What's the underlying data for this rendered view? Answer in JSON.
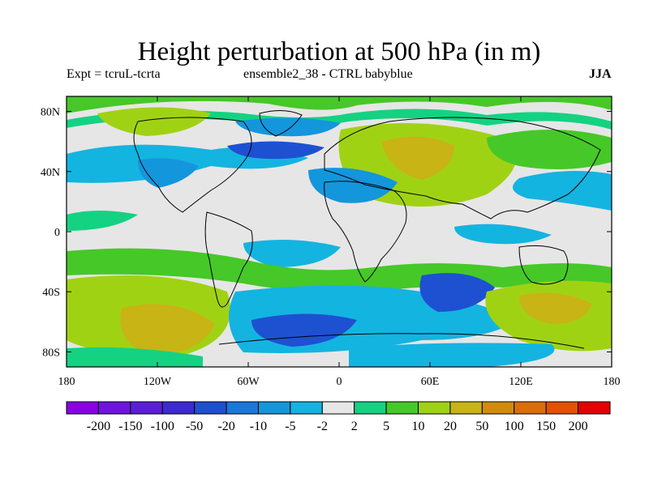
{
  "title": "Height perturbation at 500 hPa (in m)",
  "subtitle_left": "Expt = tcruL-tcrta",
  "subtitle_center": "ensemble2_38 - CTRL babyblue",
  "subtitle_right": "JJA",
  "chart_data": {
    "type": "heatmap",
    "projection": "cylindrical-equidistant",
    "xlim": [
      -180,
      180
    ],
    "ylim": [
      -90,
      90
    ],
    "x_ticks": [
      {
        "value": -180,
        "label": "180"
      },
      {
        "value": -120,
        "label": "120W"
      },
      {
        "value": -60,
        "label": "60W"
      },
      {
        "value": 0,
        "label": "0"
      },
      {
        "value": 60,
        "label": "60E"
      },
      {
        "value": 120,
        "label": "120E"
      },
      {
        "value": 180,
        "label": "180"
      }
    ],
    "y_ticks": [
      {
        "value": 80,
        "label": "80N"
      },
      {
        "value": 40,
        "label": "40N"
      },
      {
        "value": 0,
        "label": "0"
      },
      {
        "value": -40,
        "label": "40S"
      },
      {
        "value": -80,
        "label": "80S"
      }
    ],
    "colorbar": {
      "levels": [
        "-200",
        "-150",
        "-100",
        "-50",
        "-20",
        "-10",
        "-5",
        "-2",
        "2",
        "5",
        "10",
        "20",
        "50",
        "100",
        "150",
        "200"
      ],
      "colors": [
        "#8a00e6",
        "#6f14e0",
        "#5a1ed8",
        "#3c2ad2",
        "#1e50d2",
        "#1a78dc",
        "#1496dc",
        "#14b4e0",
        "#e6e6e6",
        "#14d282",
        "#46c828",
        "#a0d214",
        "#c8b414",
        "#d28c0a",
        "#dc6e0a",
        "#e65000",
        "#e60000"
      ]
    },
    "background_color": "#e6e6e6",
    "regions": [
      {
        "name": "south-pacific-positive-anomaly",
        "lon": -130,
        "lat": -58,
        "rx": 60,
        "ry": 22,
        "level": 3
      },
      {
        "name": "antarctic-atlantic-negative-anomaly",
        "lon": -40,
        "lat": -72,
        "rx": 50,
        "ry": 12,
        "level": -3
      },
      {
        "name": "south-indian-negative-anomaly",
        "lon": 45,
        "lat": -50,
        "rx": 30,
        "ry": 13,
        "level": -3
      },
      {
        "name": "australia-south-positive-anomaly",
        "lon": 140,
        "lat": -50,
        "rx": 35,
        "ry": 18,
        "level": 3
      },
      {
        "name": "eurasia-positive-anomaly",
        "lon": 60,
        "lat": 50,
        "rx": 55,
        "ry": 22,
        "level": 3
      },
      {
        "name": "north-america-negative-anomaly",
        "lon": -105,
        "lat": 40,
        "rx": 25,
        "ry": 12,
        "level": -2
      },
      {
        "name": "north-atlantic-negative-anomaly",
        "lon": -40,
        "lat": 50,
        "rx": 35,
        "ry": 10,
        "level": -2
      },
      {
        "name": "arctic-positive-anomaly",
        "lon": -90,
        "lat": 75,
        "rx": 80,
        "ry": 12,
        "level": 2
      }
    ]
  }
}
